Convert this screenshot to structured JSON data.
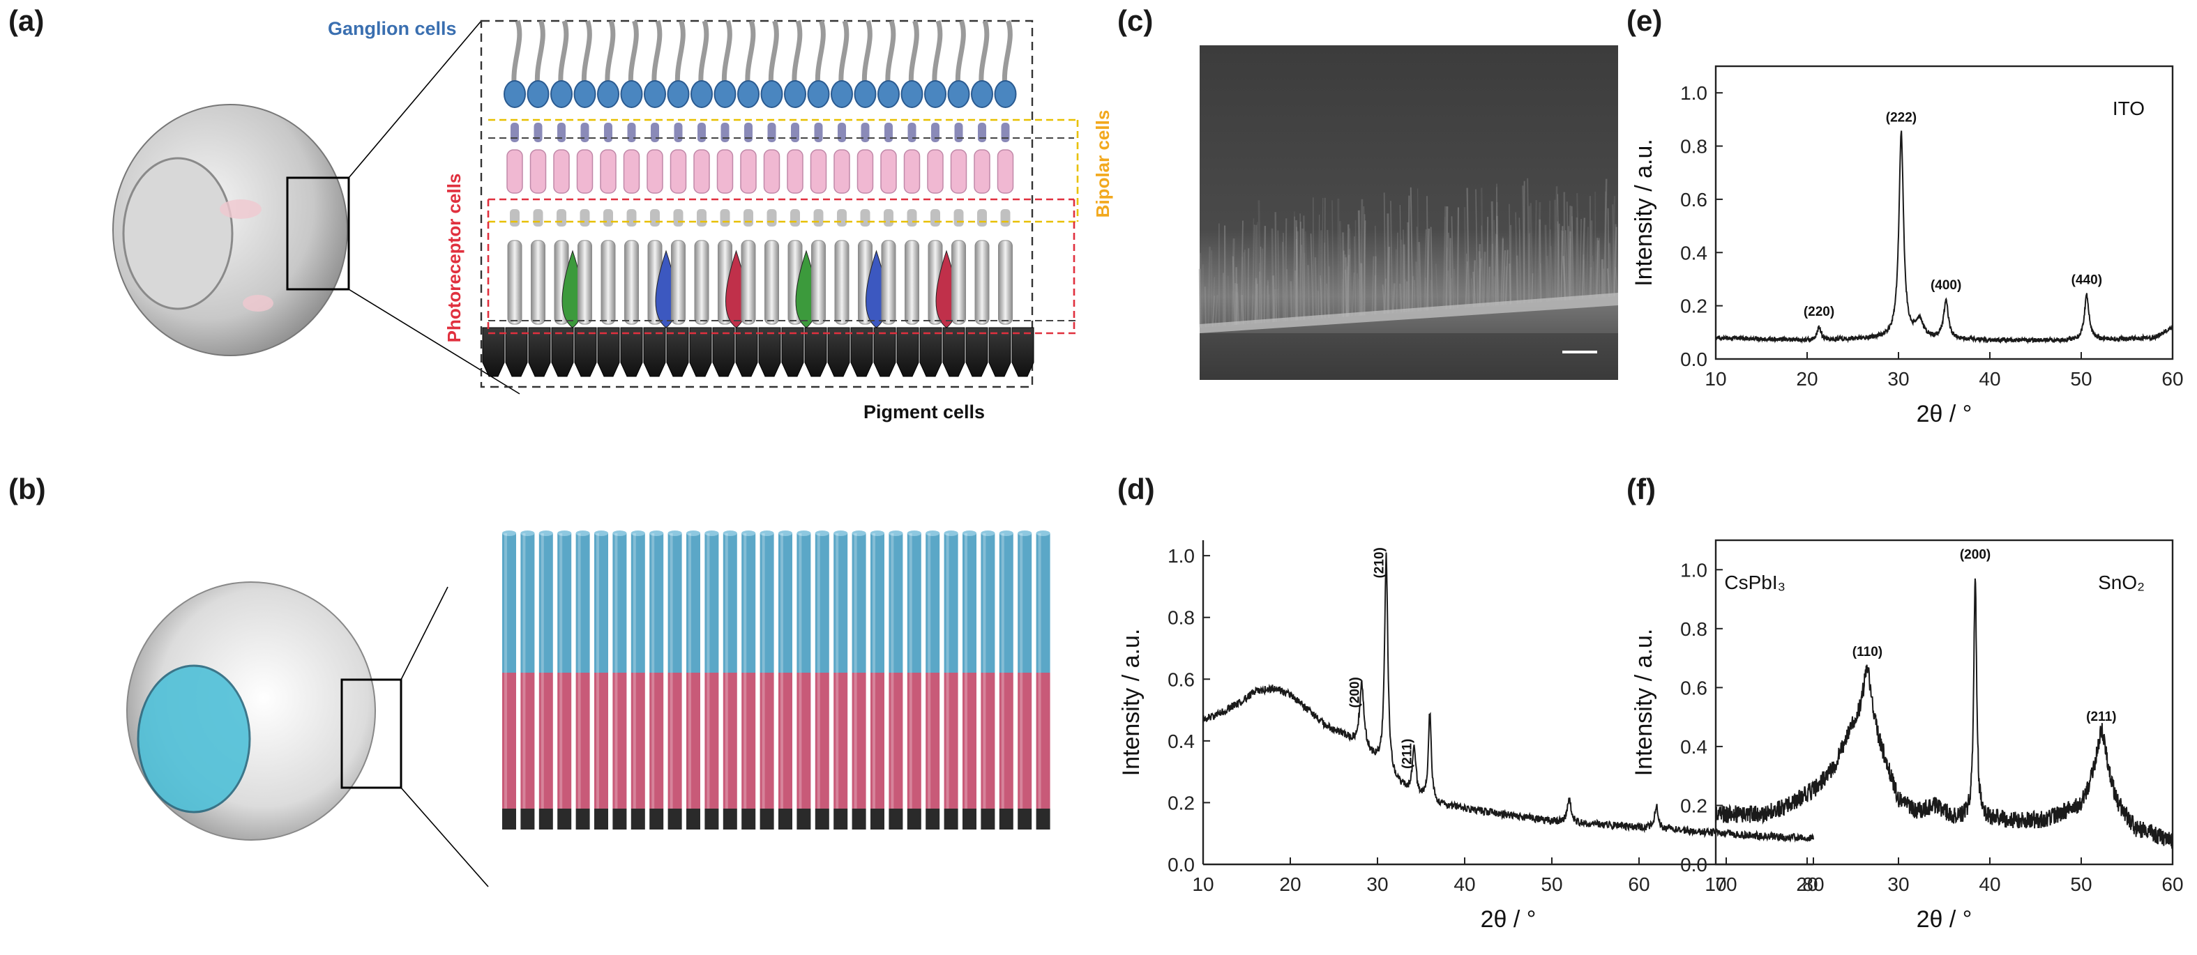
{
  "panel_labels": {
    "a": "(a)",
    "b": "(b)",
    "c": "(c)",
    "d": "(d)",
    "e": "(e)",
    "f": "(f)"
  },
  "retina_labels": {
    "ganglion": "Ganglion cells",
    "bipolar": "Bipolar cells",
    "photoreceptor": "Photoreceptor cells",
    "pigment": "Pigment cells"
  },
  "colors": {
    "ganglion_text": "#3a6fb0",
    "bipolar_text": "#f2a81d",
    "photoreceptor_text": "#e0303e",
    "nanowire_top": "#5ba7c7",
    "nanowire_mid": "#c85a78",
    "nanowire_base": "#2a2a2a",
    "cone_green": "#3c9a3c",
    "cone_blue": "#3c58c0",
    "cone_red": "#c0304a",
    "lens_cyan": "#4fc0d8",
    "curve": "#1a1a1a"
  },
  "chart_data": [
    {
      "id": "d",
      "type": "line",
      "title": "",
      "xlabel": "2θ / °",
      "ylabel": "Intensity / a.u.",
      "xlim": [
        10,
        80
      ],
      "ylim": [
        0,
        1.05
      ],
      "xticks": [
        10,
        20,
        30,
        40,
        50,
        60,
        70,
        80
      ],
      "yticks": [
        0.0,
        0.2,
        0.4,
        0.6,
        0.8,
        1.0
      ],
      "legend": "CsPbI₃",
      "background": [
        [
          10,
          0.47
        ],
        [
          12,
          0.49
        ],
        [
          14,
          0.52
        ],
        [
          16,
          0.56
        ],
        [
          18,
          0.57
        ],
        [
          20,
          0.55
        ],
        [
          22,
          0.5
        ],
        [
          24,
          0.45
        ],
        [
          26,
          0.42
        ],
        [
          28,
          0.38
        ],
        [
          30,
          0.33
        ],
        [
          32,
          0.27
        ],
        [
          34,
          0.22
        ],
        [
          36,
          0.2
        ],
        [
          40,
          0.18
        ],
        [
          45,
          0.16
        ],
        [
          50,
          0.14
        ],
        [
          55,
          0.13
        ],
        [
          60,
          0.12
        ],
        [
          65,
          0.11
        ],
        [
          70,
          0.1
        ],
        [
          75,
          0.09
        ],
        [
          80,
          0.085
        ]
      ],
      "peaks": [
        {
          "x": 28.2,
          "y": 0.58,
          "w": 0.3,
          "label": "(200)"
        },
        {
          "x": 31.0,
          "y": 1.0,
          "w": 0.22,
          "label": "(210)"
        },
        {
          "x": 34.2,
          "y": 0.38,
          "w": 0.25,
          "label": "(211)"
        },
        {
          "x": 36.0,
          "y": 0.49,
          "w": 0.2,
          "label": ""
        },
        {
          "x": 52.0,
          "y": 0.21,
          "w": 0.25,
          "label": ""
        },
        {
          "x": 62.0,
          "y": 0.19,
          "w": 0.25,
          "label": ""
        }
      ],
      "noise": 0.012
    },
    {
      "id": "e",
      "type": "line",
      "title": "",
      "xlabel": "2θ / °",
      "ylabel": "Intensity / a.u.",
      "xlim": [
        10,
        60
      ],
      "ylim": [
        0,
        1.1
      ],
      "xticks": [
        10,
        20,
        30,
        40,
        50,
        60
      ],
      "yticks": [
        0.0,
        0.2,
        0.4,
        0.6,
        0.8,
        1.0
      ],
      "legend": "ITO",
      "background": [
        [
          10,
          0.08
        ],
        [
          20,
          0.07
        ],
        [
          30,
          0.08
        ],
        [
          40,
          0.07
        ],
        [
          50,
          0.07
        ],
        [
          58,
          0.08
        ],
        [
          60,
          0.12
        ]
      ],
      "peaks": [
        {
          "x": 21.3,
          "y": 0.12,
          "w": 0.25,
          "label": "(220)"
        },
        {
          "x": 30.3,
          "y": 0.85,
          "w": 0.3,
          "label": "(222)"
        },
        {
          "x": 32.3,
          "y": 0.14,
          "w": 0.5,
          "label": ""
        },
        {
          "x": 35.2,
          "y": 0.22,
          "w": 0.3,
          "label": "(400)"
        },
        {
          "x": 50.6,
          "y": 0.24,
          "w": 0.3,
          "label": "(440)"
        }
      ],
      "noise": 0.008
    },
    {
      "id": "f",
      "type": "line",
      "title": "",
      "xlabel": "2θ / °",
      "ylabel": "Intensity / a.u.",
      "xlim": [
        10,
        60
      ],
      "ylim": [
        0,
        1.1
      ],
      "xticks": [
        10,
        20,
        30,
        40,
        50,
        60
      ],
      "yticks": [
        0.0,
        0.2,
        0.4,
        0.6,
        0.8,
        1.0
      ],
      "legend": "SnO₂",
      "background": [
        [
          10,
          0.17
        ],
        [
          15,
          0.17
        ],
        [
          18,
          0.2
        ],
        [
          21,
          0.26
        ],
        [
          23,
          0.33
        ],
        [
          25,
          0.47
        ],
        [
          26.5,
          0.52
        ],
        [
          28,
          0.4
        ],
        [
          30,
          0.22
        ],
        [
          32,
          0.18
        ],
        [
          34,
          0.2
        ],
        [
          36,
          0.16
        ],
        [
          38,
          0.16
        ],
        [
          42,
          0.15
        ],
        [
          46,
          0.15
        ],
        [
          50,
          0.2
        ],
        [
          52.3,
          0.35
        ],
        [
          54,
          0.2
        ],
        [
          56,
          0.12
        ],
        [
          60,
          0.08
        ]
      ],
      "peaks": [
        {
          "x": 26.6,
          "y": 0.67,
          "w": 0.5,
          "label": "(110)"
        },
        {
          "x": 33.8,
          "y": 0.2,
          "w": 0.4,
          "label": ""
        },
        {
          "x": 38.4,
          "y": 1.0,
          "w": 0.18,
          "label": "(200)"
        },
        {
          "x": 52.2,
          "y": 0.45,
          "w": 0.6,
          "label": "(211)"
        }
      ],
      "noise": 0.03
    }
  ]
}
